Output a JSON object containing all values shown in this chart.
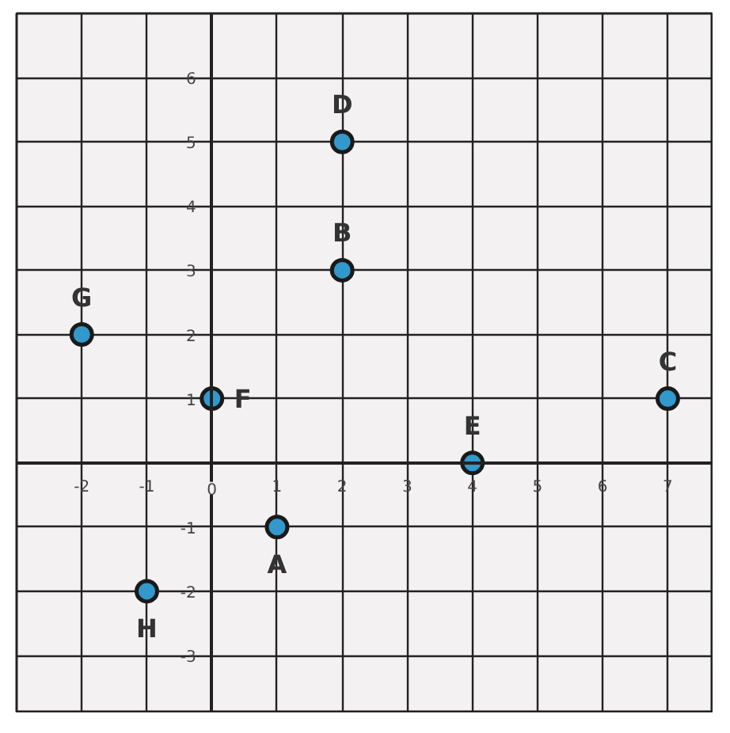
{
  "chart_data": {
    "type": "scatter",
    "x": [
      1,
      2,
      7,
      2,
      4,
      0,
      -2,
      -1
    ],
    "values": [
      -1,
      3,
      1,
      5,
      0,
      1,
      2,
      -2
    ],
    "color": "#3399cc",
    "marker": "circle",
    "xlim": [
      -3,
      7.7
    ],
    "ylim": [
      -3.9,
      7
    ],
    "xticks": [
      -2,
      -1,
      0,
      1,
      2,
      3,
      4,
      5,
      6,
      7
    ],
    "yticks": [
      -3,
      -2,
      -1,
      1,
      2,
      3,
      4,
      5,
      6
    ],
    "grid": true,
    "annotations": [
      {
        "text": "A",
        "x": 1,
        "y": -1
      },
      {
        "text": "B",
        "x": 2,
        "y": 3
      },
      {
        "text": "C",
        "x": 7,
        "y": 1
      },
      {
        "text": "D",
        "x": 2,
        "y": 5
      },
      {
        "text": "E",
        "x": 4,
        "y": 0
      },
      {
        "text": "F",
        "x": 0,
        "y": 1
      },
      {
        "text": "G",
        "x": -2,
        "y": 2
      },
      {
        "text": "H",
        "x": -1,
        "y": -2
      }
    ]
  }
}
